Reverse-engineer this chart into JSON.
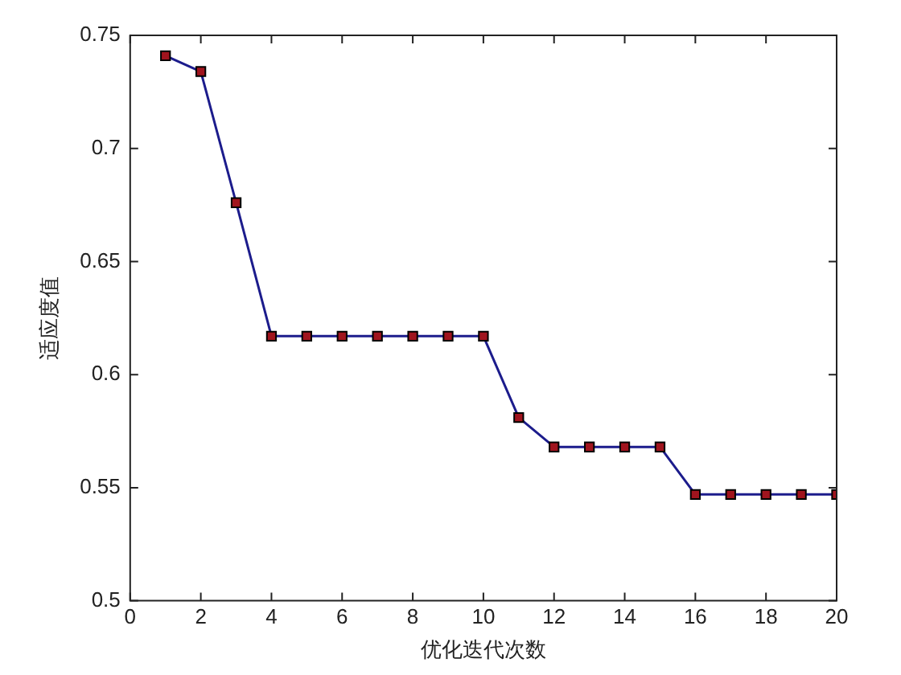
{
  "chart_data": {
    "type": "line",
    "xlabel": "优化迭代次数",
    "ylabel": "适应度值",
    "x": [
      1,
      2,
      3,
      4,
      5,
      6,
      7,
      8,
      9,
      10,
      11,
      12,
      13,
      14,
      15,
      16,
      17,
      18,
      19,
      20
    ],
    "series": [
      {
        "color": "#1c1c8c",
        "values": [
          0.741,
          0.734,
          0.676,
          0.617,
          0.617,
          0.617,
          0.617,
          0.617,
          0.617,
          0.617,
          0.581,
          0.568,
          0.568,
          0.568,
          0.568,
          0.547,
          0.547,
          0.547,
          0.547,
          0.547
        ]
      }
    ],
    "xlim": [
      0,
      20
    ],
    "xticks": [
      0,
      2,
      4,
      6,
      8,
      10,
      12,
      14,
      16,
      18,
      20
    ],
    "ylim": [
      0.5,
      0.75
    ],
    "yticks": [
      0.5,
      0.55,
      0.6,
      0.65,
      0.7,
      0.75
    ],
    "marker": "square",
    "line_style": "solid",
    "grid": false,
    "legend": false
  }
}
